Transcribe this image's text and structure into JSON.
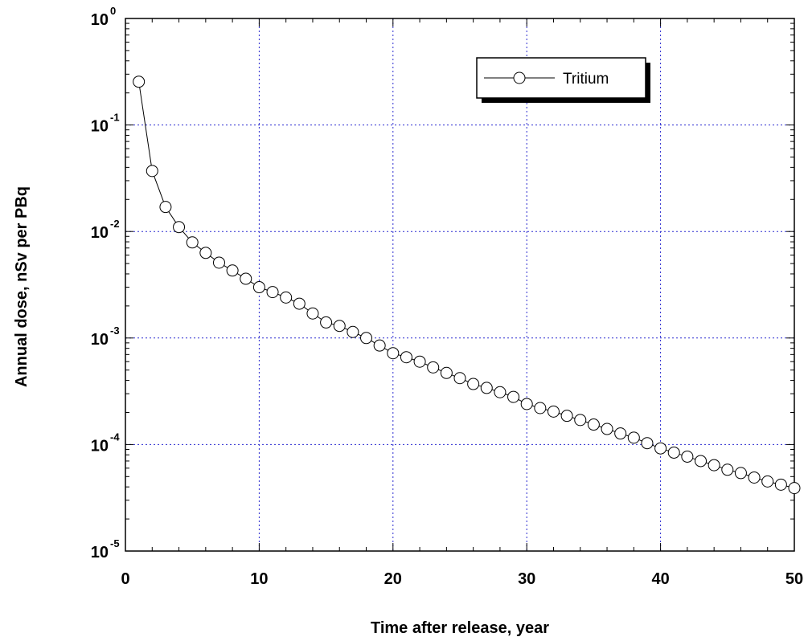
{
  "chart_data": {
    "type": "line",
    "title": "",
    "xlabel": "Time after release, year",
    "ylabel": "Annual dose, nSv per PBq",
    "xlim": [
      0,
      50
    ],
    "ylim": [
      1e-05,
      1
    ],
    "yscale": "log",
    "grid": true,
    "legend_position": "top-right",
    "x_ticks": [
      {
        "value": 0,
        "label": "0"
      },
      {
        "value": 10,
        "label": "10"
      },
      {
        "value": 20,
        "label": "20"
      },
      {
        "value": 30,
        "label": "30"
      },
      {
        "value": 40,
        "label": "40"
      },
      {
        "value": 50,
        "label": "50"
      }
    ],
    "y_ticks": [
      {
        "value": 1,
        "base": "10",
        "exp": "0"
      },
      {
        "value": 0.1,
        "base": "10",
        "exp": "-1"
      },
      {
        "value": 0.01,
        "base": "10",
        "exp": "-2"
      },
      {
        "value": 0.001,
        "base": "10",
        "exp": "-3"
      },
      {
        "value": 0.0001,
        "base": "10",
        "exp": "-4"
      },
      {
        "value": 1e-05,
        "base": "10",
        "exp": "-5"
      }
    ],
    "series": [
      {
        "name": "Tritium",
        "color": "#000000",
        "marker": "open-circle",
        "x": [
          1,
          2,
          3,
          4,
          5,
          6,
          7,
          8,
          9,
          10,
          11,
          12,
          13,
          14,
          15,
          16,
          17,
          18,
          19,
          20,
          21,
          22,
          23,
          24,
          25,
          26,
          27,
          28,
          29,
          30,
          31,
          32,
          33,
          34,
          35,
          36,
          37,
          38,
          39,
          40,
          41,
          42,
          43,
          44,
          45,
          46,
          47,
          48,
          49,
          50
        ],
        "y": [
          0.255,
          0.037,
          0.017,
          0.011,
          0.0079,
          0.0063,
          0.0051,
          0.0043,
          0.0036,
          0.003,
          0.0027,
          0.0024,
          0.0021,
          0.0017,
          0.0014,
          0.0013,
          0.00114,
          0.001,
          0.00085,
          0.00072,
          0.00066,
          0.0006,
          0.00053,
          0.00047,
          0.00042,
          0.00037,
          0.00034,
          0.00031,
          0.00028,
          0.00024,
          0.00022,
          0.000204,
          0.000186,
          0.00017,
          0.000154,
          0.00014,
          0.000127,
          0.000116,
          0.000103,
          9.2e-05,
          8.4e-05,
          7.7e-05,
          7e-05,
          6.4e-05,
          5.8e-05,
          5.4e-05,
          4.9e-05,
          4.5e-05,
          4.2e-05,
          3.9e-05
        ]
      }
    ]
  }
}
